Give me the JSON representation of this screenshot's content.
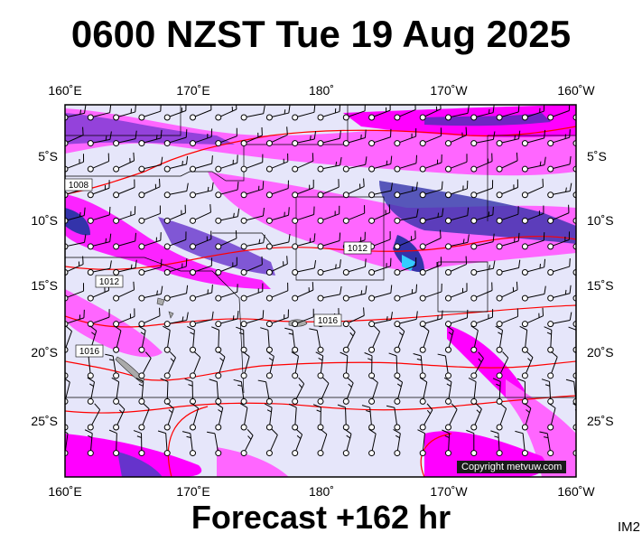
{
  "header": {
    "title": "0600 NZST Tue 19 Aug 2025"
  },
  "footer": {
    "forecast": "Forecast +162 hr",
    "image_tag": "IM2"
  },
  "map": {
    "copyright": "Copyright metvuw.com",
    "top_lon_labels": [
      "160˚E",
      "170˚E",
      "180˚",
      "170˚W",
      "160˚W"
    ],
    "bottom_lon_labels": [
      "160˚E",
      "170˚E",
      "180˚",
      "170˚W",
      "160˚W"
    ],
    "left_lat_labels": [
      "5˚S",
      "10˚S",
      "15˚S",
      "20˚S",
      "25˚S"
    ],
    "right_lat_labels": [
      "5˚S",
      "10˚S",
      "15˚S",
      "20˚S",
      "25˚S"
    ],
    "isobar_labels": [
      "1008",
      "1012",
      "1012",
      "1016",
      "1016"
    ],
    "colors": {
      "background": "#e6e6fa",
      "rain_light": "#ff66ff",
      "rain_medium": "#ff00ff",
      "rain_heavy": "#6633cc",
      "rain_very_heavy": "#3333aa",
      "isobar": "#ff0000",
      "land": "#999999"
    }
  }
}
